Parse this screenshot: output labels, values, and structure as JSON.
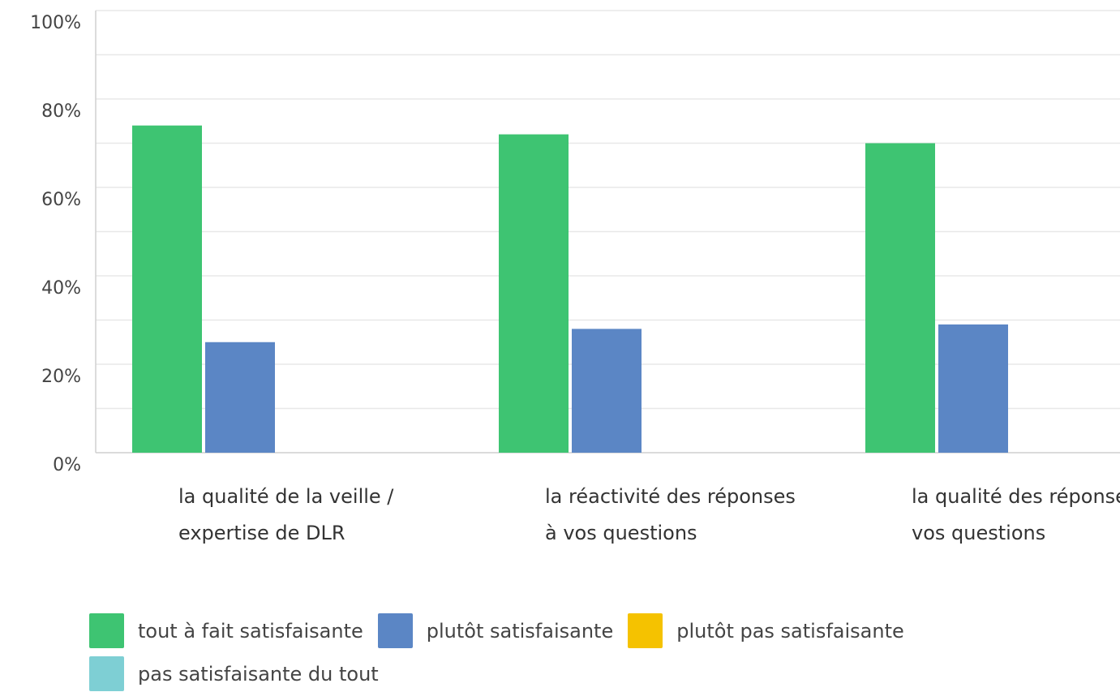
{
  "chart_data": {
    "type": "bar",
    "categories": [
      "la qualité de la veille / expertise de DLR",
      "la réactivité des réponses à vos questions",
      "la qualité des réponses à vos questions"
    ],
    "series": [
      {
        "name": "tout à fait satisfaisante",
        "color": "#3ec472",
        "values": [
          74,
          72,
          70
        ]
      },
      {
        "name": "plutôt satisfaisante",
        "color": "#5b86c5",
        "values": [
          25,
          28,
          29
        ]
      },
      {
        "name": "plutôt pas satisfaisante",
        "color": "#f5c200",
        "values": [
          0,
          0,
          0
        ]
      },
      {
        "name": "pas satisfaisante du tout",
        "color": "#7ecfd4",
        "values": [
          0,
          0,
          0
        ]
      }
    ],
    "ylim": [
      0,
      100
    ],
    "yticks": [
      {
        "value": 0,
        "label": "0%"
      },
      {
        "value": 20,
        "label": "20%"
      },
      {
        "value": 40,
        "label": "40%"
      },
      {
        "value": 60,
        "label": "60%"
      },
      {
        "value": 80,
        "label": "80%"
      },
      {
        "value": 100,
        "label": "100%"
      }
    ],
    "minor_yticks": [
      10,
      30,
      50,
      70,
      90
    ],
    "grid": true
  }
}
